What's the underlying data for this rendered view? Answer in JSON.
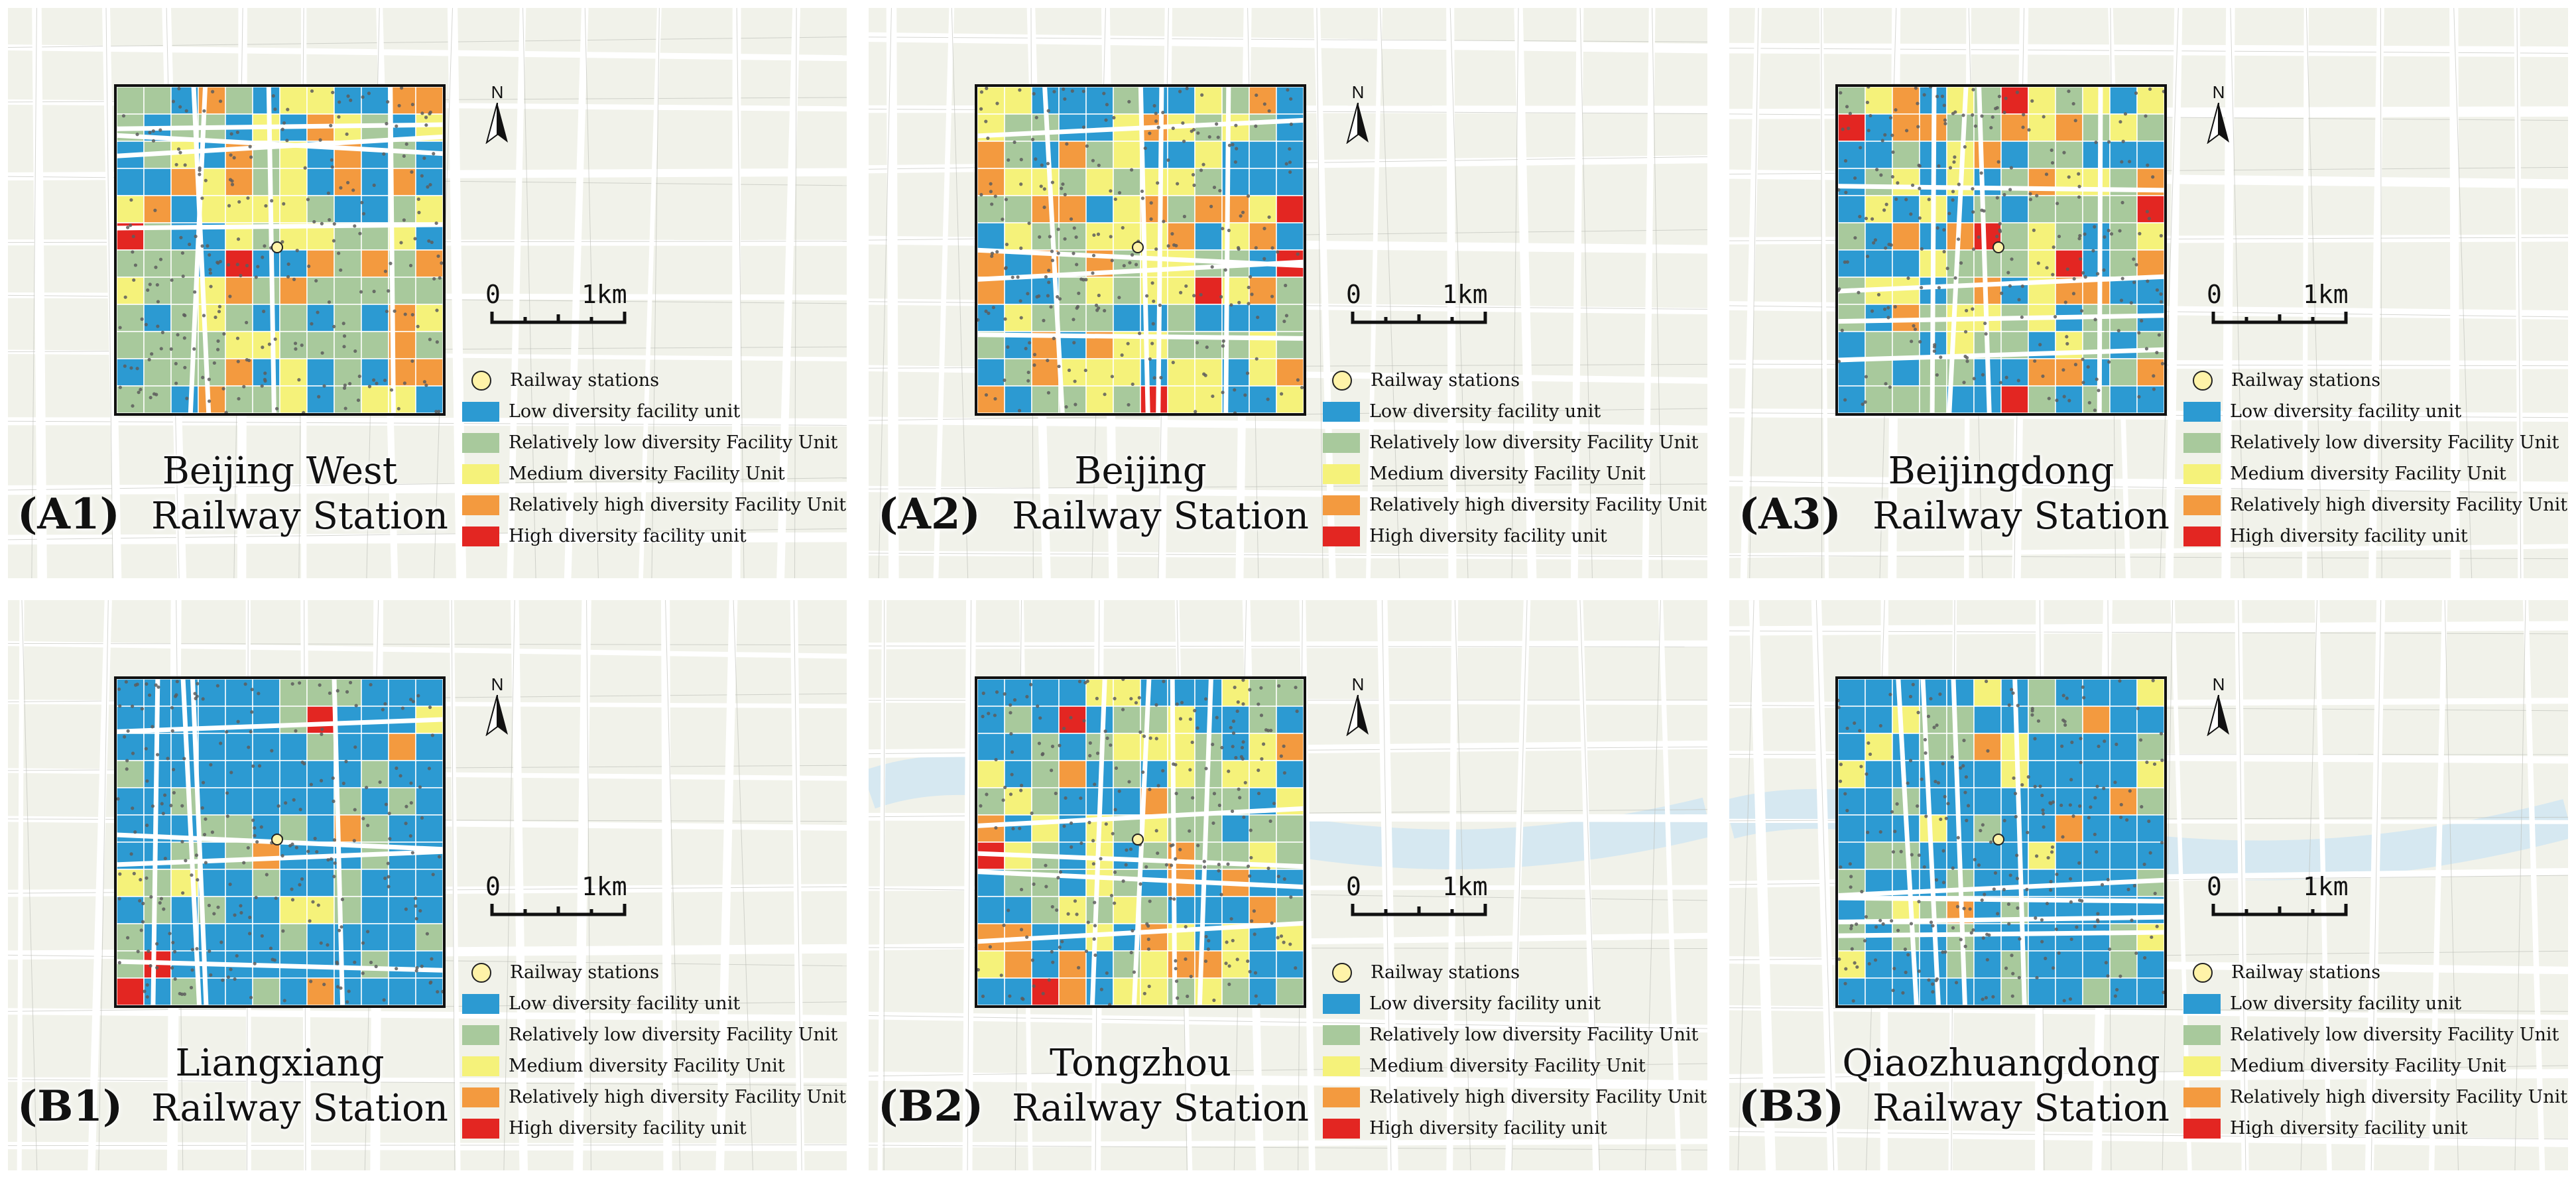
{
  "colors": {
    "low": "#2c9ad2",
    "rel_low": "#a8c99c",
    "medium": "#f5f27a",
    "rel_high": "#f39a3f",
    "high": "#e32622",
    "station": "#fff3a8",
    "map_bg": "#f1f2ea",
    "road": "#ffffff",
    "water": "#d6e8f1"
  },
  "legend": {
    "station": "Railway stations",
    "low": "Low diversity facility unit",
    "rel_low": "Relatively low diversity Facility Unit",
    "medium": "Medium  diversity Facility Unit",
    "rel_high": "Relatively high diversity Facility Unit",
    "high": "High diversity facility unit"
  },
  "scale": {
    "zero": "0",
    "one": "1km"
  },
  "north": "N",
  "panels": [
    {
      "id": "A1",
      "label": "(A1)",
      "title_line1": "Beijing West",
      "title_line2": "Railway Station",
      "seed": 11,
      "bias": "mid",
      "water": false
    },
    {
      "id": "A2",
      "label": "(A2)",
      "title_line1": "Beijing",
      "title_line2": "Railway Station",
      "seed": 23,
      "bias": "mid",
      "water": false
    },
    {
      "id": "A3",
      "label": "(A3)",
      "title_line1": "Beijingdong",
      "title_line2": "Railway Station",
      "seed": 37,
      "bias": "mix",
      "water": false
    },
    {
      "id": "B1",
      "label": "(B1)",
      "title_line1": "Liangxiang",
      "title_line2": "Railway Station",
      "seed": 41,
      "bias": "low",
      "water": false
    },
    {
      "id": "B2",
      "label": "(B2)",
      "title_line1": "Tongzhou",
      "title_line2": "Railway Station",
      "seed": 53,
      "bias": "mix",
      "water": true
    },
    {
      "id": "B3",
      "label": "(B3)",
      "title_line1": "Qiaozhuangdong",
      "title_line2": "Railway Station",
      "seed": 67,
      "bias": "verylow",
      "water": true
    }
  ]
}
